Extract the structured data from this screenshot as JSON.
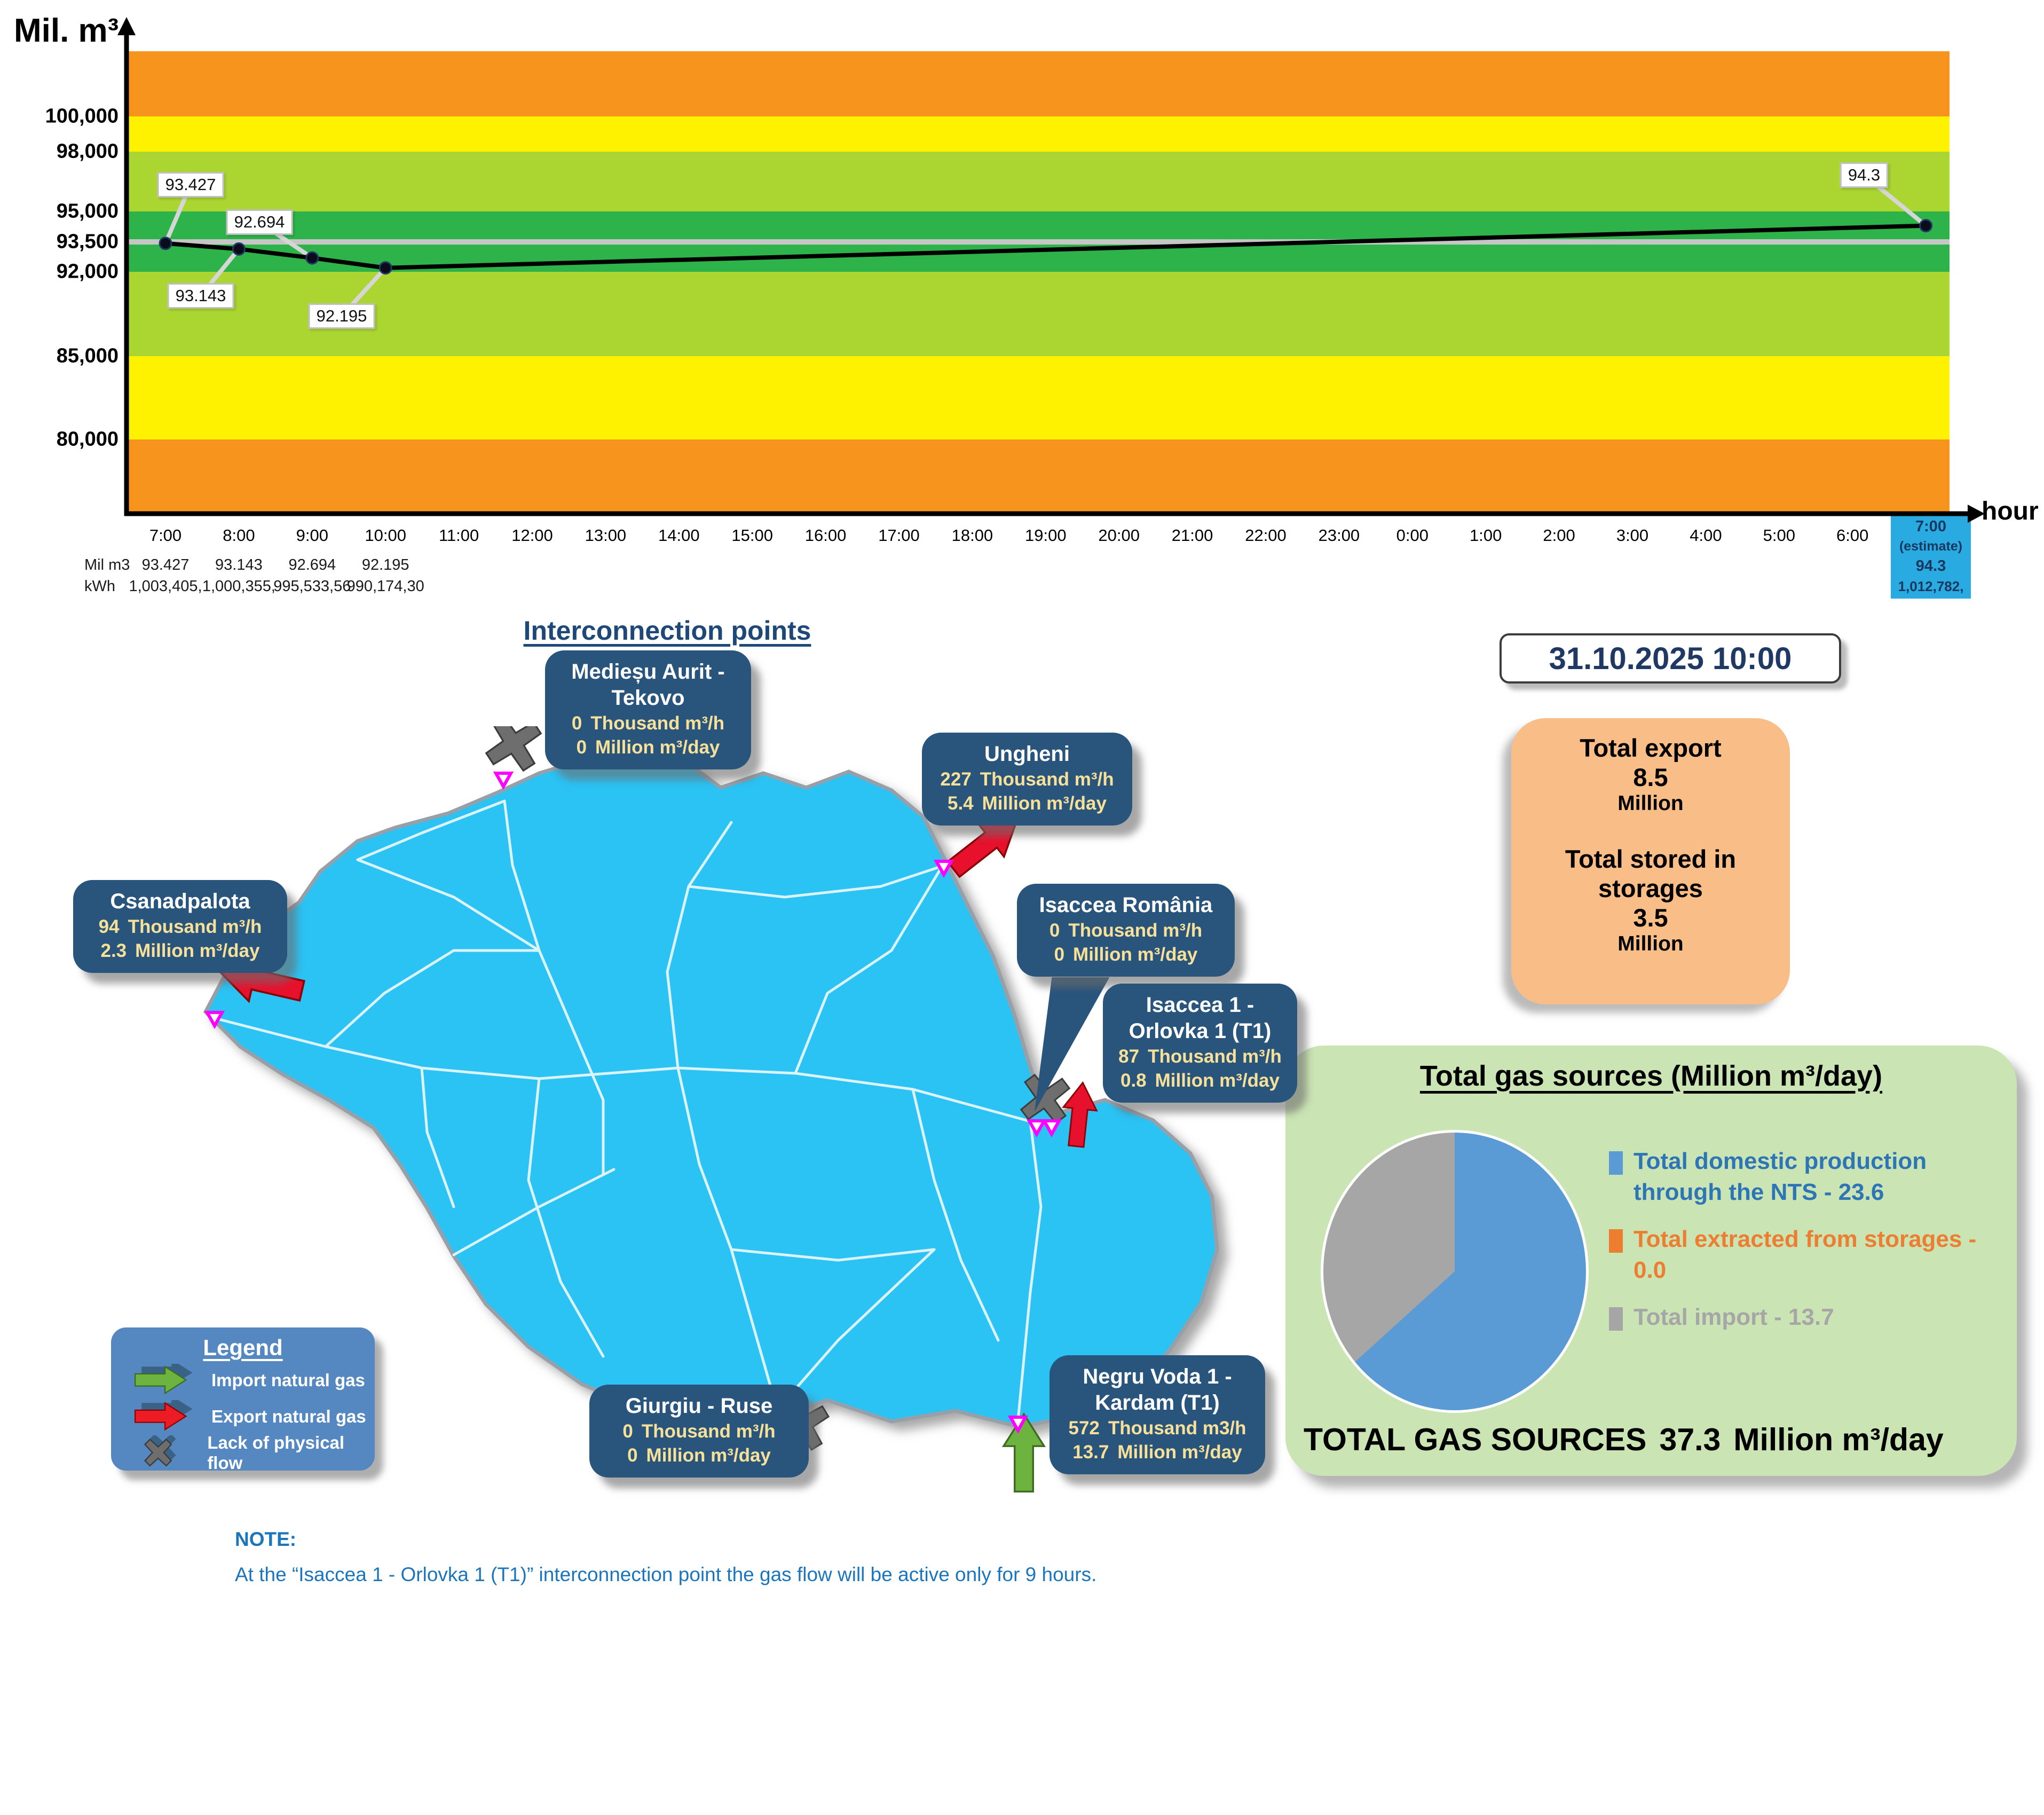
{
  "chart_data": {
    "type": "line",
    "y_axis_label": "Mil. m³",
    "x_axis_label": "hour",
    "y_tick_labels": [
      "100,000",
      "98,000",
      "95,000",
      "93,500",
      "92,000",
      "85,000",
      "80,000"
    ],
    "y_tick_values": [
      100000,
      98000,
      95000,
      93500,
      92000,
      85000,
      80000
    ],
    "target_line_value": 93500,
    "target_line_color": "#C6C6C6",
    "bands": [
      {
        "from": 100000,
        "to": 999999,
        "color": "#F7941E"
      },
      {
        "from": 98000,
        "to": 100000,
        "color": "#FFF200"
      },
      {
        "from": 95000,
        "to": 98000,
        "color": "#ABD531"
      },
      {
        "from": 92000,
        "to": 95000,
        "color": "#2DB34A"
      },
      {
        "from": 85000,
        "to": 92000,
        "color": "#ABD531"
      },
      {
        "from": 80000,
        "to": 85000,
        "color": "#FFF200"
      },
      {
        "from": 0,
        "to": 80000,
        "color": "#F7941E"
      }
    ],
    "hours": [
      "7:00",
      "8:00",
      "9:00",
      "10:00",
      "11:00",
      "12:00",
      "13:00",
      "14:00",
      "15:00",
      "16:00",
      "17:00",
      "18:00",
      "19:00",
      "20:00",
      "21:00",
      "22:00",
      "23:00",
      "0:00",
      "1:00",
      "2:00",
      "3:00",
      "4:00",
      "5:00",
      "6:00"
    ],
    "points": [
      {
        "hour": "7:00",
        "value": 93.427,
        "label": "93.427"
      },
      {
        "hour": "8:00",
        "value": 93.143,
        "label": "93.143"
      },
      {
        "hour": "9:00",
        "value": 92.694,
        "label": "92.694"
      },
      {
        "hour": "10:00",
        "value": 92.195,
        "label": "92.195"
      }
    ],
    "estimate_point": {
      "hour": "7:00",
      "note": "(estimate)",
      "value": 94.3,
      "label": "94.3",
      "kwh": "1,012,782,"
    },
    "table": {
      "row1_label": "Mil m3",
      "row1_values": [
        "93.427",
        "93.143",
        "92.694",
        "92.195"
      ],
      "row2_label": "kWh",
      "row2_values": [
        "1,003,405,",
        "1,000,355,",
        "995,533,56",
        "990,174,30"
      ]
    }
  },
  "map": {
    "title": "Interconnection points",
    "points": [
      {
        "name": "Medieșu Aurit - Tekovo",
        "flow_hour": "0",
        "flow_hour_unit": "Thousand m³/h",
        "flow_day": "0",
        "flow_day_unit": "Million m³/day"
      },
      {
        "name": "Ungheni",
        "flow_hour": "227",
        "flow_hour_unit": "Thousand m³/h",
        "flow_day": "5.4",
        "flow_day_unit": "Million m³/day"
      },
      {
        "name": "Isaccea România",
        "flow_hour": "0",
        "flow_hour_unit": "Thousand m³/h",
        "flow_day": "0",
        "flow_day_unit": "Million m³/day"
      },
      {
        "name": "Isaccea 1 - Orlovka 1 (T1)",
        "flow_hour": "87",
        "flow_hour_unit": "Thousand m³/h",
        "flow_day": "0.8",
        "flow_day_unit": "Million m³/day"
      },
      {
        "name": "Csanadpalota",
        "flow_hour": "94",
        "flow_hour_unit": "Thousand m³/h",
        "flow_day": "2.3",
        "flow_day_unit": "Million m³/day"
      },
      {
        "name": "Giurgiu - Ruse",
        "flow_hour": "0",
        "flow_hour_unit": "Thousand m³/h",
        "flow_day": "0",
        "flow_day_unit": "Million m³/day"
      },
      {
        "name": "Negru Voda 1 - Kardam (T1)",
        "flow_hour": "572",
        "flow_hour_unit": "Thousand m3/h",
        "flow_day": "13.7",
        "flow_day_unit": "Million m³/day"
      }
    ],
    "legend": {
      "title": "Legend",
      "items": [
        {
          "icon": "import-arrow",
          "label": "Import natural gas"
        },
        {
          "icon": "export-arrow",
          "label": "Export natural gas"
        },
        {
          "icon": "no-flow-x",
          "label": "Lack of physical flow"
        }
      ]
    }
  },
  "sidebar": {
    "datetime": "31.10.2025 10:00",
    "totals_box": {
      "export_label": "Total export",
      "export_value": "8.5",
      "export_unit": "Million",
      "stored_label": "Total stored in storages",
      "stored_value": "3.5",
      "stored_unit": "Million"
    },
    "gas_sources": {
      "title": "Total gas sources  (Million m³/day)",
      "pie_slices": [
        {
          "label": "Total domestic production through the NTS",
          "value": 23.6,
          "color": "#5B9BD5"
        },
        {
          "label": "Total extracted from storages",
          "value": 0.0,
          "color": "#ED7D31"
        },
        {
          "label": "Total import",
          "value": 13.7,
          "color": "#A6A6A6"
        }
      ],
      "legend_items": [
        {
          "text": "Total domestic production through the NTS - 23.6",
          "color": "#2E75B6",
          "square": "#5B9BD5"
        },
        {
          "text": "Total extracted from storages - 0.0",
          "color": "#ED7D31",
          "square": "#ED7D31"
        },
        {
          "text": "Total import - 13.7",
          "color": "#A6A6A6",
          "square": "#A6A6A6"
        }
      ],
      "total_label": "TOTAL GAS SOURCES",
      "total_value": "37.3",
      "total_unit": "Million m³/day"
    }
  },
  "note": {
    "heading": "NOTE:",
    "text": "At the “Isaccea 1 - Orlovka 1 (T1)” interconnection point the gas flow will be active only for 9 hours."
  }
}
